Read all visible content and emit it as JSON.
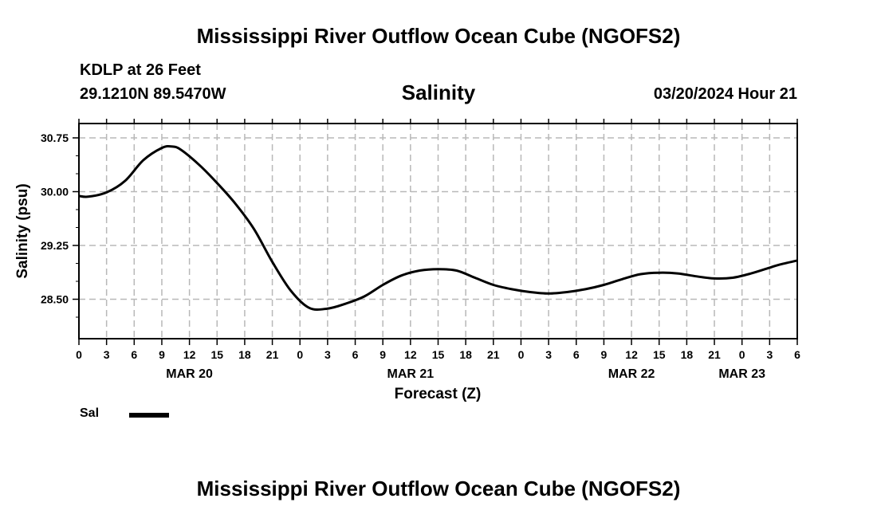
{
  "header": {
    "title": "Mississippi River Outflow Ocean Cube (NGOFS2)",
    "station": "KDLP at 26 Feet",
    "coords": "29.1210N  89.5470W",
    "datetime": "03/20/2024 Hour 21"
  },
  "footer": {
    "title": "Mississippi River Outflow Ocean Cube (NGOFS2)"
  },
  "legend": {
    "label": "Sal"
  },
  "chart_data": {
    "type": "line",
    "title": "Salinity",
    "xlabel": "Forecast (Z)",
    "ylabel": "Salinity (psu)",
    "ylim": [
      27.95,
      30.95
    ],
    "xlim": [
      0,
      78
    ],
    "grid": true,
    "x_ticks": [
      0,
      3,
      6,
      9,
      12,
      15,
      18,
      21,
      24,
      27,
      30,
      33,
      36,
      39,
      42,
      45,
      48,
      51,
      54,
      57,
      60,
      63,
      66,
      69,
      72,
      75,
      78
    ],
    "x_tick_labels": [
      "0",
      "3",
      "6",
      "9",
      "12",
      "15",
      "18",
      "21",
      "0",
      "3",
      "6",
      "9",
      "12",
      "15",
      "18",
      "21",
      "0",
      "3",
      "6",
      "9",
      "12",
      "15",
      "18",
      "21",
      "0",
      "3",
      "6"
    ],
    "date_labels": [
      {
        "x": 12,
        "label": "MAR 20"
      },
      {
        "x": 36,
        "label": "MAR 21"
      },
      {
        "x": 60,
        "label": "MAR 22"
      },
      {
        "x": 72,
        "label": "MAR 23"
      }
    ],
    "y_ticks": [
      28.5,
      29.25,
      30.0,
      30.75
    ],
    "y_tick_labels": [
      "28.50",
      "29.25",
      "30.00",
      "30.75"
    ],
    "series": [
      {
        "name": "Sal",
        "color": "#000000",
        "x": [
          0,
          1,
          3,
          5,
          7,
          9,
          10,
          11,
          13,
          15,
          17,
          19,
          21,
          23,
          25,
          27,
          29,
          31,
          33,
          35,
          37,
          39,
          41,
          43,
          45,
          47,
          49,
          51,
          53,
          55,
          57,
          59,
          61,
          63,
          65,
          67,
          69,
          71,
          73,
          75,
          76,
          78
        ],
        "y": [
          29.94,
          29.93,
          29.99,
          30.15,
          30.44,
          30.61,
          30.63,
          30.59,
          30.38,
          30.12,
          29.83,
          29.48,
          29.02,
          28.62,
          28.38,
          28.37,
          28.44,
          28.54,
          28.7,
          28.83,
          28.9,
          28.92,
          28.9,
          28.8,
          28.7,
          28.64,
          28.6,
          28.58,
          28.6,
          28.64,
          28.7,
          28.78,
          28.85,
          28.87,
          28.86,
          28.82,
          28.79,
          28.8,
          28.86,
          28.94,
          28.98,
          29.04
        ]
      }
    ]
  }
}
